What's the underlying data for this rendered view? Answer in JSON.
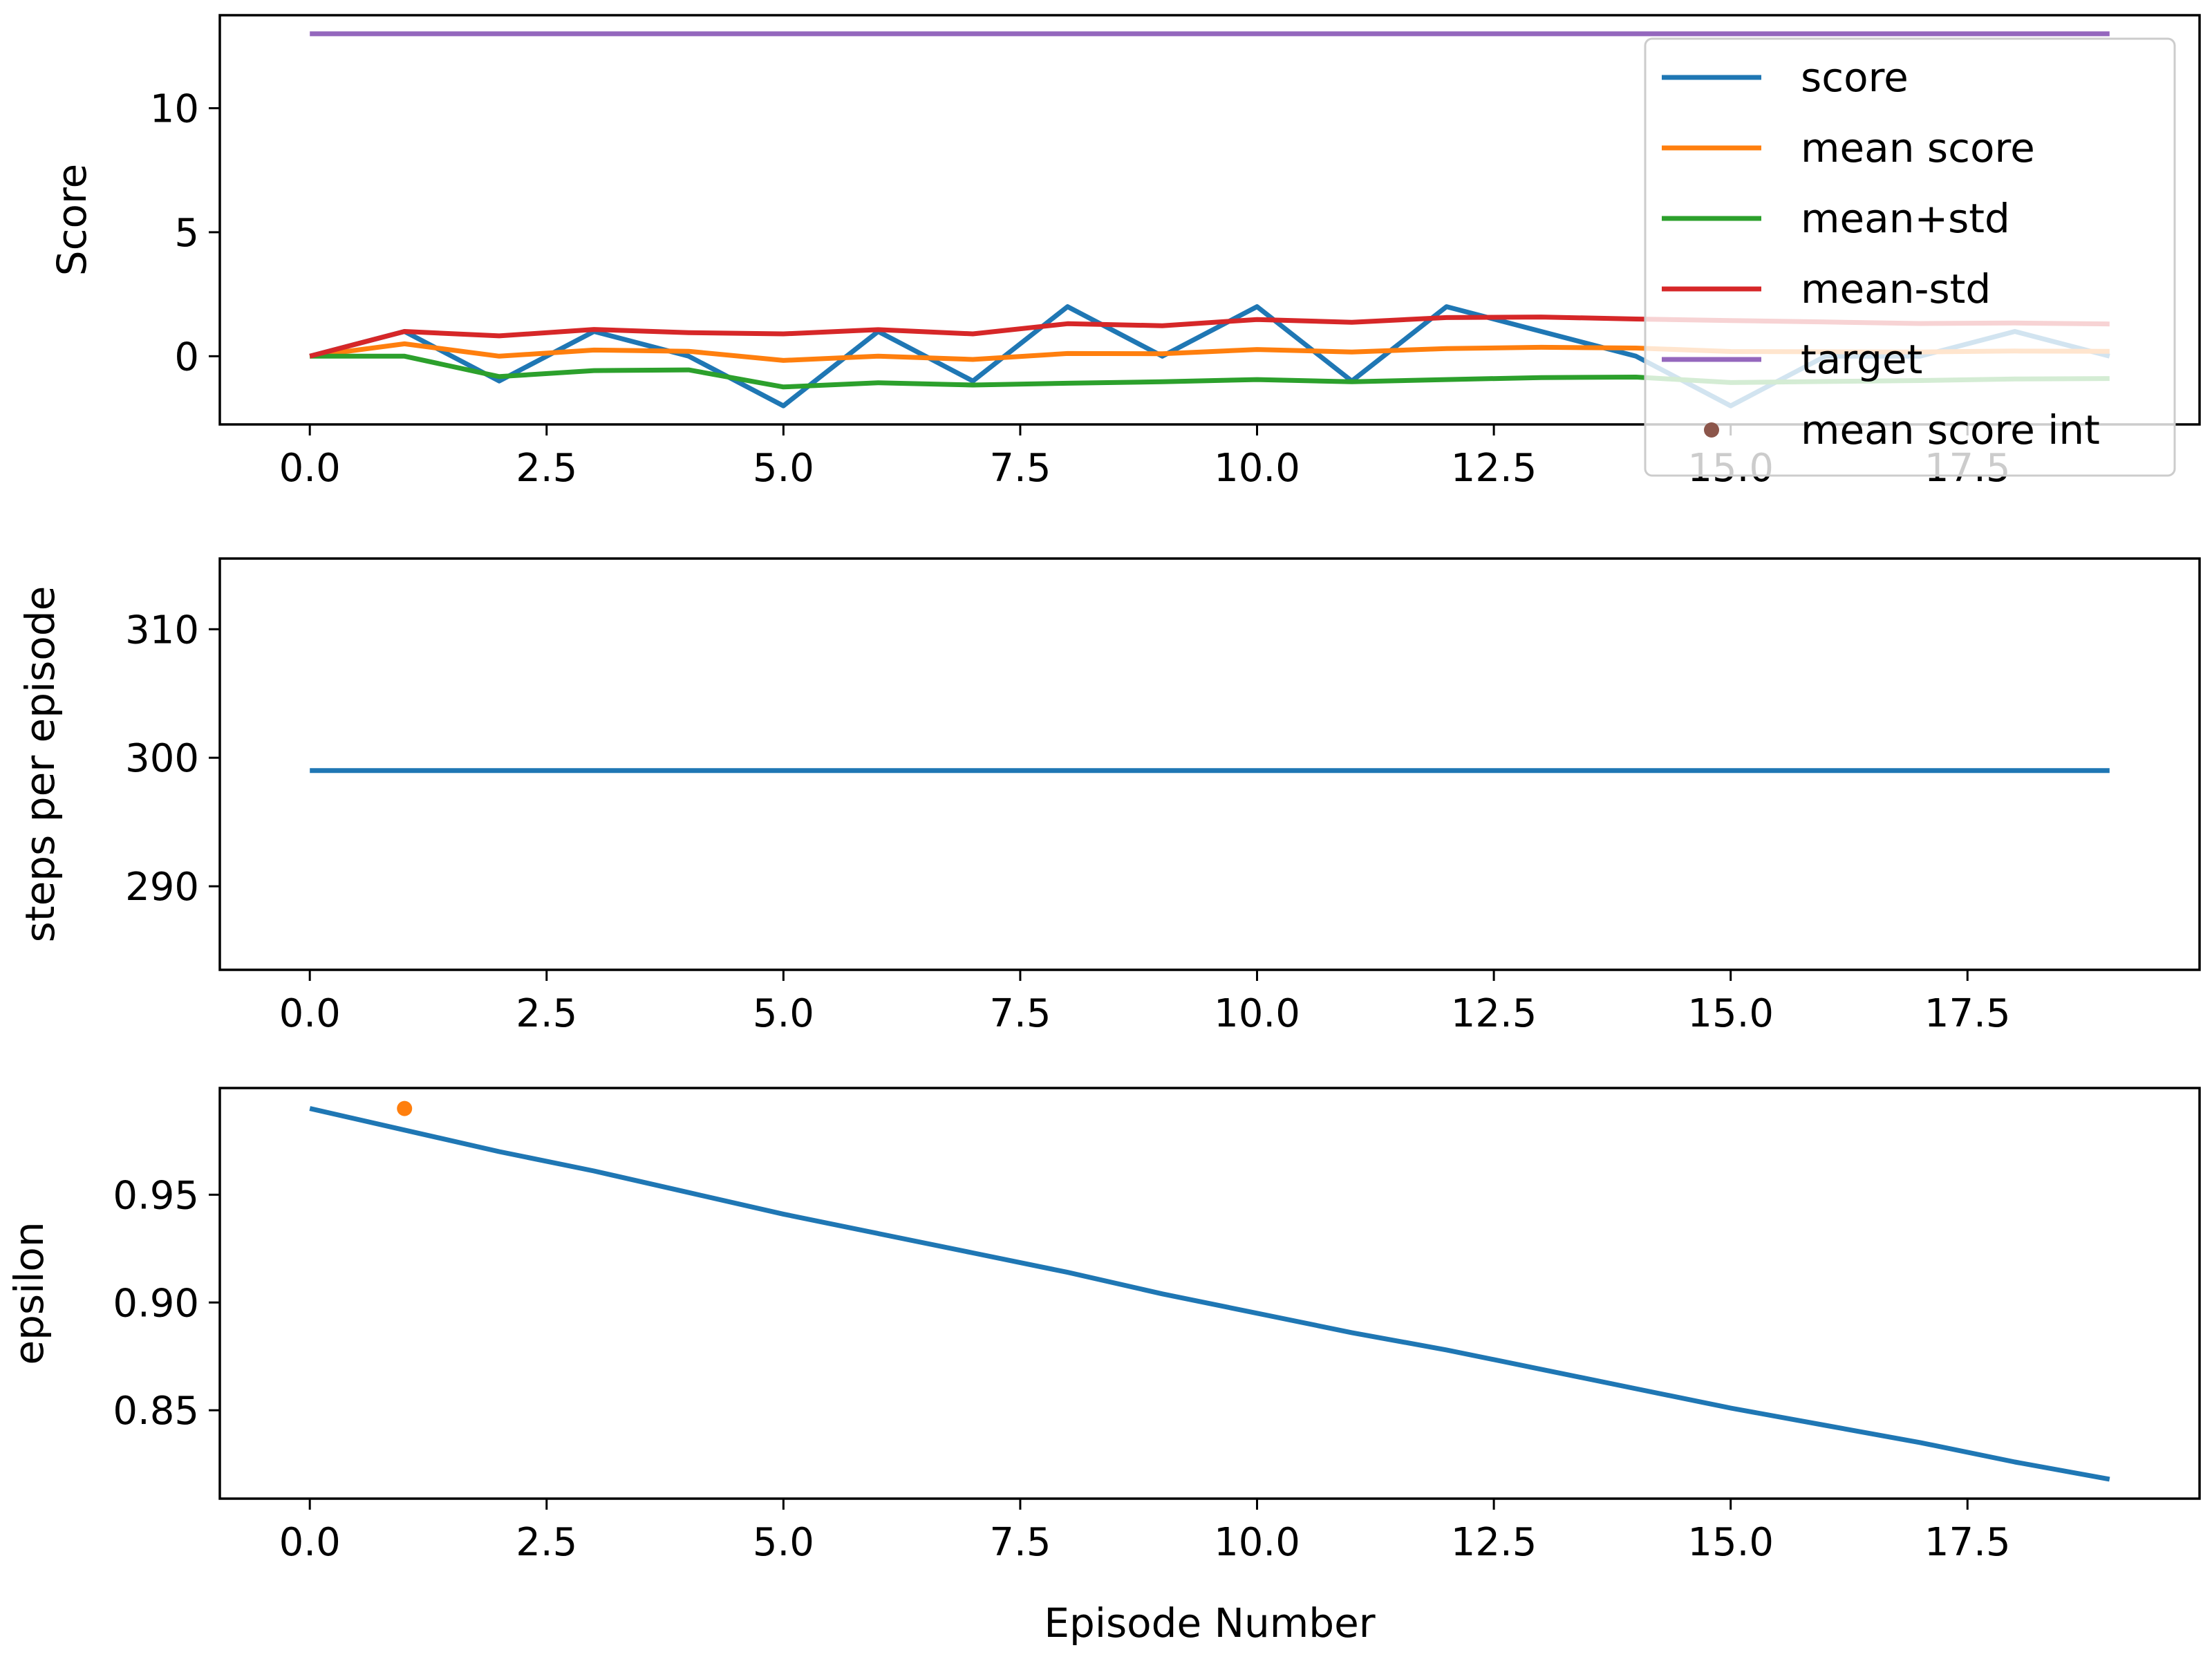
{
  "chart_data": [
    {
      "type": "line",
      "xlabel": "",
      "ylabel": "Score",
      "xlim": [
        -0.95,
        19.95
      ],
      "ylim": [
        -2.75,
        13.75
      ],
      "xticks": [
        0.0,
        2.5,
        5.0,
        7.5,
        10.0,
        12.5,
        15.0,
        17.5
      ],
      "xtick_labels": [
        "0.0",
        "2.5",
        "5.0",
        "7.5",
        "10.0",
        "12.5",
        "15.0",
        "17.5"
      ],
      "yticks": [
        0,
        5,
        10
      ],
      "ytick_labels": [
        "0",
        "5",
        "10"
      ],
      "grid": false,
      "legend_position": "upper right",
      "x": [
        0,
        1,
        2,
        3,
        4,
        5,
        6,
        7,
        8,
        9,
        10,
        11,
        12,
        13,
        14,
        15,
        16,
        17,
        18,
        19
      ],
      "series": [
        {
          "name": "score",
          "color": "#1f77b4",
          "marker": "line",
          "values": [
            0,
            1,
            -1,
            1,
            0,
            -2,
            1,
            -1,
            2,
            0,
            2,
            -1,
            2,
            1,
            0,
            -2,
            0,
            0,
            1,
            0
          ]
        },
        {
          "name": "mean score",
          "color": "#ff7f0e",
          "marker": "line",
          "values": [
            0,
            0.5,
            0.0,
            0.25,
            0.2,
            -0.17,
            0.0,
            -0.13,
            0.11,
            0.1,
            0.27,
            0.17,
            0.31,
            0.36,
            0.33,
            0.19,
            0.18,
            0.17,
            0.21,
            0.2
          ]
        },
        {
          "name": "mean+std",
          "color": "#2ca02c",
          "marker": "line",
          "values": [
            0,
            0,
            -0.82,
            -0.58,
            -0.55,
            -1.24,
            -1.07,
            -1.16,
            -1.09,
            -1.03,
            -0.94,
            -1.03,
            -0.94,
            -0.86,
            -0.84,
            -1.06,
            -1.02,
            -0.98,
            -0.92,
            -0.9
          ]
        },
        {
          "name": "mean-std",
          "color": "#d62728",
          "marker": "line",
          "values": [
            0,
            1.0,
            0.82,
            1.08,
            0.95,
            0.9,
            1.07,
            0.9,
            1.31,
            1.23,
            1.48,
            1.37,
            1.56,
            1.58,
            1.5,
            1.44,
            1.38,
            1.32,
            1.34,
            1.3
          ]
        },
        {
          "name": "target",
          "color": "#9467bd",
          "marker": "line",
          "x": [
            0,
            19
          ],
          "values": [
            13,
            13
          ]
        },
        {
          "name": "mean score int",
          "color": "#8c564b",
          "marker": "dot",
          "x": [],
          "values": []
        }
      ]
    },
    {
      "type": "line",
      "xlabel": "",
      "ylabel": "steps per episode",
      "xlim": [
        -0.95,
        19.95
      ],
      "ylim": [
        283.5,
        315.5
      ],
      "xticks": [
        0.0,
        2.5,
        5.0,
        7.5,
        10.0,
        12.5,
        15.0,
        17.5
      ],
      "xtick_labels": [
        "0.0",
        "2.5",
        "5.0",
        "7.5",
        "10.0",
        "12.5",
        "15.0",
        "17.5"
      ],
      "yticks": [
        290,
        300,
        310
      ],
      "ytick_labels": [
        "290",
        "300",
        "310"
      ],
      "grid": false,
      "x": [
        0,
        1,
        2,
        3,
        4,
        5,
        6,
        7,
        8,
        9,
        10,
        11,
        12,
        13,
        14,
        15,
        16,
        17,
        18,
        19
      ],
      "series": [
        {
          "color": "#1f77b4",
          "marker": "line",
          "values": [
            299,
            299,
            299,
            299,
            299,
            299,
            299,
            299,
            299,
            299,
            299,
            299,
            299,
            299,
            299,
            299,
            299,
            299,
            299,
            299
          ]
        }
      ]
    },
    {
      "type": "line",
      "xlabel": "Episode Number",
      "ylabel": "epsilon",
      "xlim": [
        -0.95,
        19.95
      ],
      "ylim": [
        0.809,
        0.9995
      ],
      "xticks": [
        0.0,
        2.5,
        5.0,
        7.5,
        10.0,
        12.5,
        15.0,
        17.5
      ],
      "xtick_labels": [
        "0.0",
        "2.5",
        "5.0",
        "7.5",
        "10.0",
        "12.5",
        "15.0",
        "17.5"
      ],
      "yticks": [
        0.85,
        0.9,
        0.95
      ],
      "ytick_labels": [
        "0.85",
        "0.90",
        "0.95"
      ],
      "grid": false,
      "x": [
        0,
        1,
        2,
        3,
        4,
        5,
        6,
        7,
        8,
        9,
        10,
        11,
        12,
        13,
        14,
        15,
        16,
        17,
        18,
        19
      ],
      "series": [
        {
          "color": "#1f77b4",
          "marker": "line",
          "values": [
            0.99,
            0.98,
            0.97,
            0.961,
            0.951,
            0.941,
            0.932,
            0.923,
            0.914,
            0.904,
            0.895,
            0.886,
            0.878,
            0.869,
            0.86,
            0.851,
            0.843,
            0.835,
            0.826,
            0.818
          ]
        },
        {
          "color": "#ff7f0e",
          "marker": "dot",
          "x": [
            1
          ],
          "values": [
            0.99
          ]
        }
      ]
    }
  ]
}
